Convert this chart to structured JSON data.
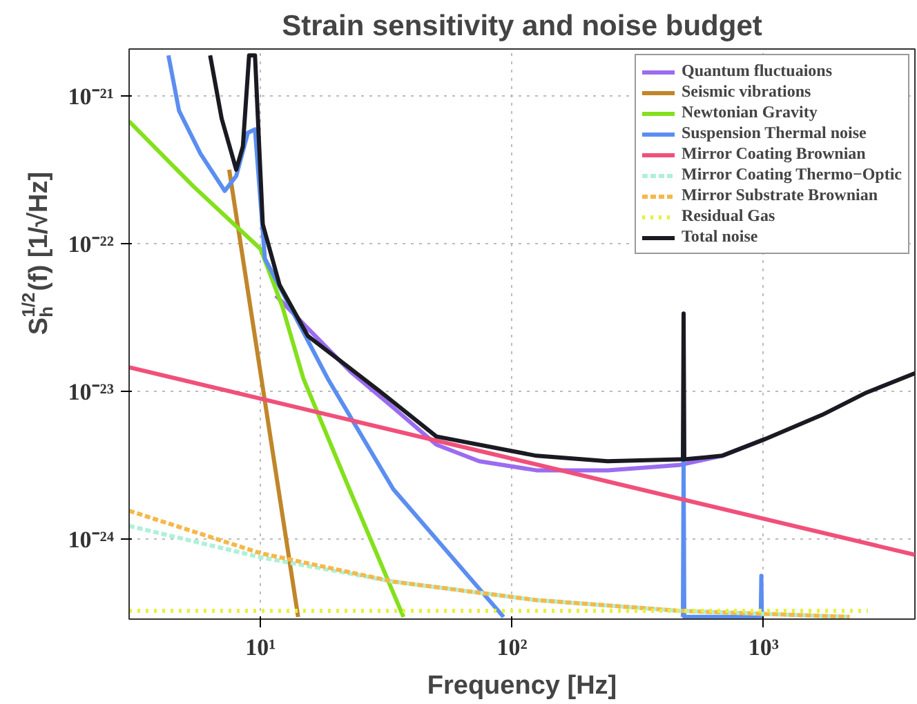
{
  "chart_data": {
    "type": "line",
    "title": "Strain sensitivity and noise budget",
    "xlabel": "Frequency [Hz]",
    "ylabel": "S$_{h}$$^{1/2}$(f) [1/√Hz]",
    "log": "xy",
    "grid": true,
    "legend": "top right",
    "xlim": [
      3,
      4000
    ],
    "ylim": [
      2.9e-25,
      2.1e-21
    ],
    "xticks": [
      {
        "value": 10,
        "label": "10¹"
      },
      {
        "value": 100,
        "label": "10²"
      },
      {
        "value": 1000,
        "label": "10³"
      }
    ],
    "yticks": [
      {
        "value": 1e-24,
        "label": "10⁻²⁴"
      },
      {
        "value": 1e-23,
        "label": "10⁻²³"
      },
      {
        "value": 1e-22,
        "label": "10⁻²²"
      },
      {
        "value": 1e-21,
        "label": "10⁻²¹"
      }
    ],
    "series": [
      {
        "name": "Quantum fluctuaions",
        "color": "#9b6cf0",
        "x": [
          11.5,
          15.4,
          22.8,
          33.8,
          50,
          74,
          125,
          240,
          462,
          684,
          1014
        ],
        "values": [
          4.5e-23,
          2.7e-23,
          1.37e-23,
          7.8e-24,
          4.4e-24,
          3.4e-24,
          2.95e-24,
          2.95e-24,
          3.2e-24,
          3.7e-24,
          4.8e-24
        ]
      },
      {
        "name": "Seismic vibrations",
        "color": "#c0862a",
        "x": [
          7.5,
          14.1
        ],
        "values": [
          3.2e-22,
          3e-25
        ]
      },
      {
        "name": "Newtonian Gravity",
        "color": "#84e01c",
        "x": [
          3,
          5.4,
          10,
          12.2,
          14.8,
          22.8,
          37
        ],
        "values": [
          6.8e-22,
          2.47e-22,
          9.3e-23,
          3.8e-23,
          1.23e-23,
          2.1e-24,
          3e-25
        ]
      },
      {
        "name": "Suspension Thermal noise",
        "color": "#5b8ef0",
        "x": [
          4.3,
          4.74,
          5.77,
          7.2,
          8.0,
          8.9,
          9.5,
          10.4,
          18.5,
          33.7,
          92.5,
          200,
          478,
          481,
          484,
          975,
          980,
          985
        ],
        "values": [
          1.9e-21,
          8e-22,
          4.1e-22,
          2.3e-22,
          2.9e-22,
          5.7e-22,
          6e-22,
          8e-23,
          1.23e-23,
          2.2e-24,
          3e-25,
          null,
          3e-25,
          3.5e-24,
          3e-25,
          3e-25,
          5.7e-25,
          3e-25
        ]
      },
      {
        "name": "Mirror Coating Brownian",
        "color": "#f0507a",
        "x": [
          3,
          4000
        ],
        "values": [
          1.47e-23,
          7.9e-25
        ]
      },
      {
        "name": "Mirror Coating Thermo−Optic",
        "color": "#b0f0d8",
        "line_style": "dashed",
        "x": [
          3,
          10,
          33.8,
          125,
          462,
          2200
        ],
        "values": [
          1.24e-24,
          7.6e-25,
          5.2e-25,
          3.9e-25,
          3.3e-25,
          3e-25
        ]
      },
      {
        "name": "Mirror Substrate Brownian",
        "color": "#f5b84a",
        "line_style": "dashed",
        "x": [
          3,
          10,
          33.8,
          125,
          462,
          2200
        ],
        "values": [
          1.57e-24,
          8.1e-25,
          5.2e-25,
          3.9e-25,
          3.3e-25,
          3e-25
        ]
      },
      {
        "name": "Residual Gas",
        "color": "#e8f040",
        "line_style": "dotted",
        "x": [
          3,
          2600
        ],
        "values": [
          3.3e-25,
          3.3e-25
        ]
      },
      {
        "name": "Total noise",
        "color": "#1a1a22",
        "x": [
          6.3,
          7.0,
          8.0,
          8.5,
          9.0,
          9.5,
          10.2,
          11.9,
          15.4,
          29.6,
          50,
          125,
          240,
          462,
          478,
          481,
          484,
          684,
          1014,
          1710,
          2530,
          4000
        ],
        "values": [
          1.9e-21,
          7.1e-22,
          3.2e-22,
          4.6e-22,
          1.9e-21,
          1.9e-21,
          1.37e-22,
          5.3e-23,
          2.4e-23,
          1.02e-23,
          5e-24,
          3.7e-24,
          3.4e-24,
          3.5e-24,
          3.5e-24,
          3.4e-23,
          3.5e-24,
          3.7e-24,
          4.8e-24,
          7e-24,
          9.8e-24,
          1.34e-23
        ]
      }
    ]
  }
}
